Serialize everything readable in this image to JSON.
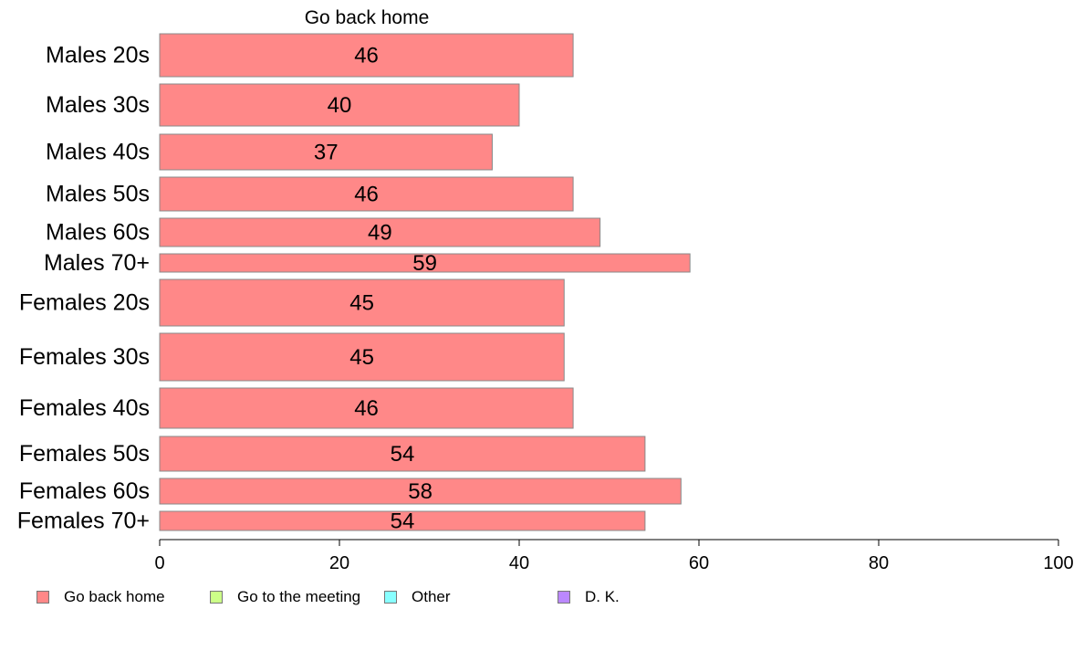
{
  "chart_data": {
    "type": "bar",
    "orientation": "horizontal",
    "stacked": true,
    "title": "Go back home",
    "categories": [
      "Males 20s",
      "Males 30s",
      "Males 40s",
      "Males 50s",
      "Males 60s",
      "Males 70+",
      "Females 20s",
      "Females 30s",
      "Females 40s",
      "Females 50s",
      "Females 60s",
      "Females 70+"
    ],
    "series": [
      {
        "name": "Go back home",
        "color": "#ff8888",
        "values": [
          46,
          40,
          37,
          46,
          49,
          59,
          45,
          45,
          46,
          54,
          58,
          54
        ]
      }
    ],
    "legend_entries": [
      {
        "name": "Go back home",
        "color": "#ff8888"
      },
      {
        "name": "Go to the meeting",
        "color": "#ccff88"
      },
      {
        "name": "Other",
        "color": "#88ffff"
      },
      {
        "name": "D. K.",
        "color": "#bb88ff"
      }
    ],
    "xlim": [
      0,
      100
    ],
    "xticks": [
      0,
      20,
      40,
      60,
      80,
      100
    ],
    "grid": false,
    "legend_position": "bottom"
  }
}
